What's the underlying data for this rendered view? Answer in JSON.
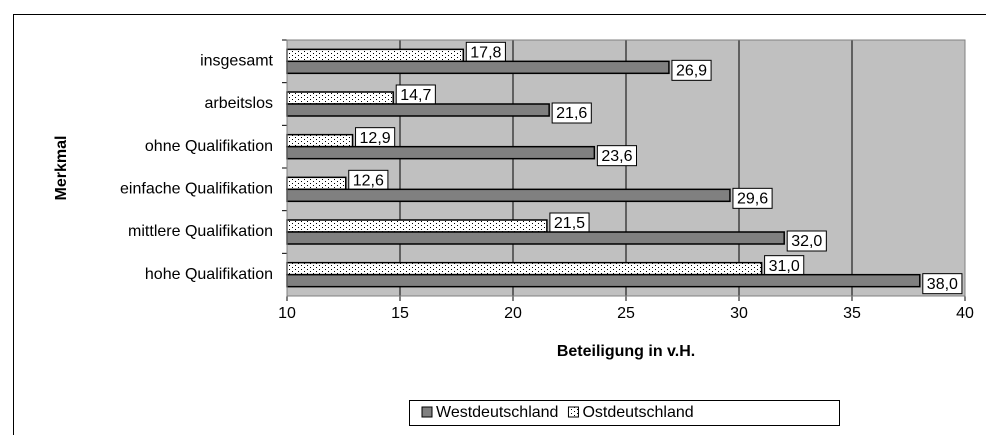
{
  "chart_data": {
    "type": "hbar",
    "xlabel": "Beteiligung in v.H.",
    "ylabel": "Merkmal",
    "categories": [
      "insgesamt",
      "arbeitslos",
      "ohne Qualifikation",
      "einfache Qualifikation",
      "mittlere Qualifikation",
      "hohe Qualifikation"
    ],
    "series": [
      {
        "name": "Westdeutschland",
        "color": "#808080",
        "values": [
          26.9,
          21.6,
          23.6,
          29.6,
          32.0,
          38.0
        ],
        "value_labels": [
          "26,9",
          "21,6",
          "23,6",
          "29,6",
          "32,0",
          "38,0"
        ]
      },
      {
        "name": "Ostdeutschland",
        "color": "#ffffff",
        "pattern": "dotted",
        "values": [
          17.8,
          14.7,
          12.9,
          12.6,
          21.5,
          31.0
        ],
        "value_labels": [
          "17,8",
          "14,7",
          "12,9",
          "12,6",
          "21,5",
          "31,0"
        ]
      }
    ],
    "xlim": [
      10,
      40
    ],
    "xticks": [
      10,
      15,
      20,
      25,
      30,
      35,
      40
    ],
    "grid": true,
    "legend": "bottom",
    "plot_background": "#c0c0c0"
  }
}
